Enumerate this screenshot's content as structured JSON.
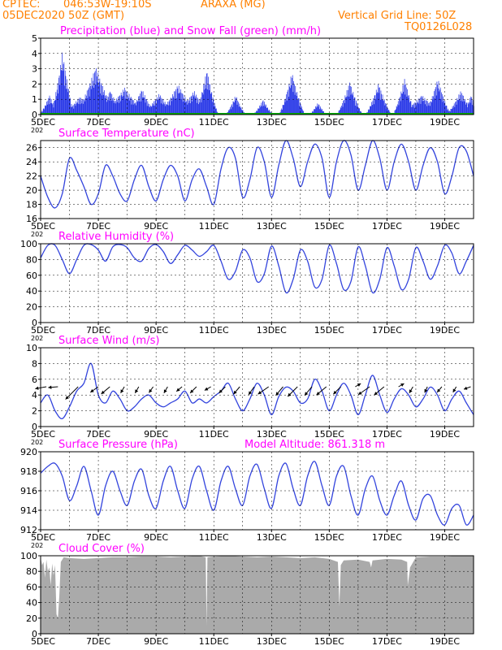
{
  "header": {
    "source": "CPTEC:",
    "coords": "046:53W-19:10S",
    "location": "ARAXA (MG)",
    "run": "05DEC2020 50Z (GMT)",
    "grid_note": "Vertical Grid Line: 50Z",
    "code": "TQ0126L028"
  },
  "colors": {
    "header": "#ff8000",
    "panel_title": "#ff00ff",
    "line": "#3344dd",
    "precip": "#1f2fe6",
    "snow": "#00aa00",
    "cloud": "#aaaaaa",
    "grid": "#000000"
  },
  "x_axis": {
    "day_range": [
      5,
      20
    ],
    "month": "DEC",
    "year_label": "202",
    "tick_labels": [
      "5DEC",
      "7DEC",
      "9DEC",
      "11DEC",
      "13DEC",
      "15DEC",
      "17DEC",
      "19DEC"
    ],
    "tick_days": [
      5,
      7,
      9,
      11,
      13,
      15,
      17,
      19
    ]
  },
  "chart_data": [
    {
      "type": "bar",
      "title": "Precipitation (blue) and Snow Fall (green) (mm/h)",
      "ylim": [
        0,
        5
      ],
      "yticks": [
        "0",
        "1",
        "2",
        "3",
        "4",
        "5"
      ],
      "precip_events": [
        {
          "day": 5.3,
          "width": 0.35,
          "peak": 1.3
        },
        {
          "day": 5.75,
          "width": 0.4,
          "peak": 4.2
        },
        {
          "day": 6.35,
          "width": 0.6,
          "peak": 1.2
        },
        {
          "day": 6.9,
          "width": 0.7,
          "peak": 3.2
        },
        {
          "day": 7.4,
          "width": 0.5,
          "peak": 1.6
        },
        {
          "day": 7.9,
          "width": 0.8,
          "peak": 1.8
        },
        {
          "day": 8.5,
          "width": 0.5,
          "peak": 1.7
        },
        {
          "day": 9.1,
          "width": 0.6,
          "peak": 1.4
        },
        {
          "day": 9.75,
          "width": 0.7,
          "peak": 2.0
        },
        {
          "day": 10.3,
          "width": 0.6,
          "peak": 1.6
        },
        {
          "day": 10.75,
          "width": 0.4,
          "peak": 3.0
        },
        {
          "day": 11.75,
          "width": 0.35,
          "peak": 1.3
        },
        {
          "day": 12.7,
          "width": 0.35,
          "peak": 1.0
        },
        {
          "day": 13.7,
          "width": 0.45,
          "peak": 2.8
        },
        {
          "day": 14.6,
          "width": 0.3,
          "peak": 0.8
        },
        {
          "day": 15.7,
          "width": 0.45,
          "peak": 2.2
        },
        {
          "day": 16.7,
          "width": 0.45,
          "peak": 2.1
        },
        {
          "day": 17.6,
          "width": 0.4,
          "peak": 2.4
        },
        {
          "day": 18.2,
          "width": 0.8,
          "peak": 1.3
        },
        {
          "day": 18.75,
          "width": 0.45,
          "peak": 2.4
        },
        {
          "day": 19.55,
          "width": 0.5,
          "peak": 1.6
        },
        {
          "day": 19.9,
          "width": 0.3,
          "peak": 1.3
        }
      ],
      "snow": 0
    },
    {
      "type": "line",
      "title": "Surface Temperature (nC)",
      "ylim": [
        16,
        27
      ],
      "yticks": [
        "16",
        "18",
        "20",
        "22",
        "24",
        "26"
      ],
      "x": [
        5,
        5.25,
        5.5,
        5.75,
        6,
        6.25,
        6.5,
        6.75,
        7,
        7.25,
        7.5,
        7.75,
        8,
        8.25,
        8.5,
        8.75,
        9,
        9.25,
        9.5,
        9.75,
        10,
        10.25,
        10.5,
        10.75,
        11,
        11.25,
        11.5,
        11.75,
        12,
        12.25,
        12.5,
        12.75,
        13,
        13.25,
        13.5,
        13.75,
        14,
        14.25,
        14.5,
        14.75,
        15,
        15.25,
        15.5,
        15.75,
        16,
        16.25,
        16.5,
        16.75,
        17,
        17.25,
        17.5,
        17.75,
        18,
        18.25,
        18.5,
        18.75,
        19,
        19.25,
        19.5,
        19.75,
        20
      ],
      "y": [
        22,
        19,
        17.5,
        19.5,
        24.5,
        22.8,
        20.5,
        18,
        19.5,
        23.5,
        22,
        19.5,
        18.5,
        21.5,
        23.5,
        20.5,
        18.5,
        21.5,
        23.5,
        22,
        18.5,
        21.5,
        23,
        20.5,
        18,
        23,
        26,
        24.5,
        19,
        21.5,
        26,
        24,
        19,
        23.5,
        27,
        24.5,
        20.5,
        24,
        26.5,
        24.5,
        19,
        24,
        27,
        25,
        20,
        23.5,
        27,
        24.5,
        20,
        24,
        26.5,
        24,
        20,
        23.5,
        26,
        24,
        19.5,
        22,
        26,
        25.5,
        22
      ]
    },
    {
      "type": "line",
      "title": "Relative Humidity (%)",
      "ylim": [
        0,
        100
      ],
      "yticks": [
        "0",
        "20",
        "40",
        "60",
        "80",
        "100"
      ],
      "x": [
        5,
        5.25,
        5.5,
        5.75,
        6,
        6.25,
        6.5,
        6.75,
        7,
        7.25,
        7.5,
        7.75,
        8,
        8.25,
        8.5,
        8.75,
        9,
        9.25,
        9.5,
        9.75,
        10,
        10.25,
        10.5,
        10.75,
        11,
        11.25,
        11.5,
        11.75,
        12,
        12.25,
        12.5,
        12.75,
        13,
        13.25,
        13.5,
        13.75,
        14,
        14.25,
        14.5,
        14.75,
        15,
        15.25,
        15.5,
        15.75,
        16,
        16.25,
        16.5,
        16.75,
        17,
        17.25,
        17.5,
        17.75,
        18,
        18.25,
        18.5,
        18.75,
        19,
        19.25,
        19.5,
        19.75,
        20
      ],
      "y": [
        82,
        98,
        98,
        80,
        62,
        80,
        98,
        99,
        92,
        78,
        96,
        99,
        95,
        82,
        78,
        94,
        99,
        90,
        75,
        86,
        98,
        92,
        84,
        90,
        98,
        78,
        55,
        65,
        92,
        82,
        52,
        62,
        97,
        72,
        38,
        55,
        92,
        78,
        45,
        55,
        98,
        75,
        42,
        52,
        96,
        72,
        38,
        55,
        95,
        72,
        42,
        55,
        95,
        78,
        55,
        72,
        98,
        88,
        62,
        78,
        98
      ]
    },
    {
      "type": "line",
      "title": "Surface Wind (m/s)",
      "ylim": [
        0,
        10
      ],
      "yticks": [
        "0",
        "2",
        "4",
        "6",
        "8",
        "10"
      ],
      "x": [
        5,
        5.25,
        5.5,
        5.75,
        6,
        6.25,
        6.5,
        6.75,
        7,
        7.25,
        7.5,
        7.75,
        8,
        8.25,
        8.5,
        8.75,
        9,
        9.25,
        9.5,
        9.75,
        10,
        10.25,
        10.5,
        10.75,
        11,
        11.25,
        11.5,
        11.75,
        12,
        12.25,
        12.5,
        12.75,
        13,
        13.25,
        13.5,
        13.75,
        14,
        14.25,
        14.5,
        14.75,
        15,
        15.25,
        15.5,
        15.75,
        16,
        16.25,
        16.5,
        16.75,
        17,
        17.25,
        17.5,
        17.75,
        18,
        18.25,
        18.5,
        18.75,
        19,
        19.25,
        19.5,
        19.75,
        20
      ],
      "y": [
        3,
        4,
        2,
        1,
        2.5,
        4.5,
        5.5,
        8,
        4,
        3,
        4.5,
        3.5,
        2,
        2.5,
        3.5,
        4,
        3,
        2.5,
        3,
        3.5,
        4.5,
        3,
        3.5,
        3,
        3.8,
        4.5,
        5.5,
        3.5,
        2,
        3.5,
        5.5,
        4,
        1.5,
        3.8,
        5,
        4.5,
        3,
        3.5,
        6,
        4.5,
        2,
        4,
        5.5,
        4,
        1.5,
        4,
        6.5,
        4,
        1.8,
        3.5,
        4.8,
        4,
        2.5,
        3.5,
        5,
        4,
        2,
        3.5,
        4.5,
        3,
        1.5
      ],
      "arrows": [
        {
          "day": 5.2,
          "dir": 190,
          "len": 14
        },
        {
          "day": 5.6,
          "dir": 185,
          "len": 12
        },
        {
          "day": 6.3,
          "dir": 225,
          "len": 22
        },
        {
          "day": 7.0,
          "dir": 215,
          "len": 12
        },
        {
          "day": 7.4,
          "dir": 220,
          "len": 14
        },
        {
          "day": 7.9,
          "dir": 240,
          "len": 9
        },
        {
          "day": 8.4,
          "dir": 240,
          "len": 9
        },
        {
          "day": 8.9,
          "dir": 235,
          "len": 9
        },
        {
          "day": 9.4,
          "dir": 240,
          "len": 9
        },
        {
          "day": 9.9,
          "dir": 220,
          "len": 9
        },
        {
          "day": 10.4,
          "dir": 225,
          "len": 11
        },
        {
          "day": 10.9,
          "dir": 210,
          "len": 9
        },
        {
          "day": 11.4,
          "dir": 225,
          "len": 11
        },
        {
          "day": 11.9,
          "dir": 230,
          "len": 12
        },
        {
          "day": 12.4,
          "dir": 235,
          "len": 12
        },
        {
          "day": 12.9,
          "dir": 215,
          "len": 16
        },
        {
          "day": 13.4,
          "dir": 230,
          "len": 14
        },
        {
          "day": 13.9,
          "dir": 225,
          "len": 17
        },
        {
          "day": 14.4,
          "dir": 230,
          "len": 14
        },
        {
          "day": 14.9,
          "dir": 220,
          "len": 16
        },
        {
          "day": 15.4,
          "dir": 225,
          "len": 13
        },
        {
          "day": 15.9,
          "dir": 30,
          "len": 8
        },
        {
          "day": 16.4,
          "dir": 215,
          "len": 17
        },
        {
          "day": 16.9,
          "dir": 220,
          "len": 16
        },
        {
          "day": 17.4,
          "dir": 30,
          "len": 8
        },
        {
          "day": 17.9,
          "dir": 240,
          "len": 9
        },
        {
          "day": 18.4,
          "dir": 245,
          "len": 8
        },
        {
          "day": 18.9,
          "dir": 230,
          "len": 9
        },
        {
          "day": 19.4,
          "dir": 240,
          "len": 8
        },
        {
          "day": 19.9,
          "dir": 200,
          "len": 9
        }
      ]
    },
    {
      "type": "line",
      "title": "Surface Pressure (hPa)",
      "subtitle": "Model Altitude: 861.318 m",
      "ylim": [
        912,
        920
      ],
      "yticks": [
        "912",
        "914",
        "916",
        "918",
        "920"
      ],
      "x": [
        5,
        5.25,
        5.5,
        5.75,
        6,
        6.25,
        6.5,
        6.75,
        7,
        7.25,
        7.5,
        7.75,
        8,
        8.25,
        8.5,
        8.75,
        9,
        9.25,
        9.5,
        9.75,
        10,
        10.25,
        10.5,
        10.75,
        11,
        11.25,
        11.5,
        11.75,
        12,
        12.25,
        12.5,
        12.75,
        13,
        13.25,
        13.5,
        13.75,
        14,
        14.25,
        14.5,
        14.75,
        15,
        15.25,
        15.5,
        15.75,
        16,
        16.25,
        16.5,
        16.75,
        17,
        17.25,
        17.5,
        17.75,
        18,
        18.25,
        18.5,
        18.75,
        19,
        19.25,
        19.5,
        19.75,
        20
      ],
      "y": [
        917.8,
        918.5,
        918.8,
        917.5,
        915,
        916.5,
        918.5,
        916,
        913.5,
        916.5,
        918,
        916,
        914.5,
        917,
        918.2,
        915.5,
        914.2,
        917,
        918.5,
        916,
        914.2,
        917.2,
        918.5,
        916,
        914,
        917,
        918.5,
        916.2,
        914.5,
        917.5,
        918.7,
        916.2,
        914.2,
        917.5,
        918.8,
        916.2,
        914.5,
        917.5,
        919,
        916.5,
        914.5,
        917.5,
        918.5,
        915.5,
        913.5,
        916.2,
        917.5,
        915,
        913.5,
        915.5,
        917,
        914.5,
        913,
        915.2,
        915.5,
        913.5,
        912.5,
        914.2,
        914.5,
        912.5,
        913.5
      ]
    },
    {
      "type": "area",
      "title": "Cloud Cover (%)",
      "ylim": [
        0,
        100
      ],
      "yticks": [
        "0",
        "20",
        "40",
        "60",
        "80",
        "100"
      ],
      "x": [
        5,
        5.05,
        5.1,
        5.15,
        5.2,
        5.25,
        5.3,
        5.35,
        5.4,
        5.45,
        5.5,
        5.55,
        5.6,
        5.65,
        5.7,
        5.8,
        6,
        6.5,
        7,
        7.5,
        8,
        8.5,
        9,
        9.5,
        10,
        10.5,
        10.72,
        10.75,
        10.78,
        11,
        11.5,
        12,
        12.5,
        13,
        13.5,
        14,
        14.5,
        15,
        15.3,
        15.35,
        15.4,
        15.5,
        16,
        16.4,
        16.45,
        16.5,
        17,
        17.5,
        17.7,
        17.72,
        17.75,
        17.8,
        18,
        18.5,
        19,
        19.5,
        20
      ],
      "y": [
        98,
        88,
        92,
        72,
        95,
        80,
        85,
        62,
        90,
        75,
        88,
        25,
        20,
        50,
        92,
        98,
        97,
        96,
        97,
        98,
        98,
        99,
        99,
        98,
        99,
        100,
        98,
        10,
        98,
        99,
        100,
        99,
        98,
        99,
        98,
        97,
        98,
        96,
        92,
        35,
        88,
        94,
        95,
        92,
        85,
        94,
        96,
        95,
        92,
        62,
        70,
        85,
        98,
        99,
        99,
        100,
        100
      ]
    }
  ]
}
